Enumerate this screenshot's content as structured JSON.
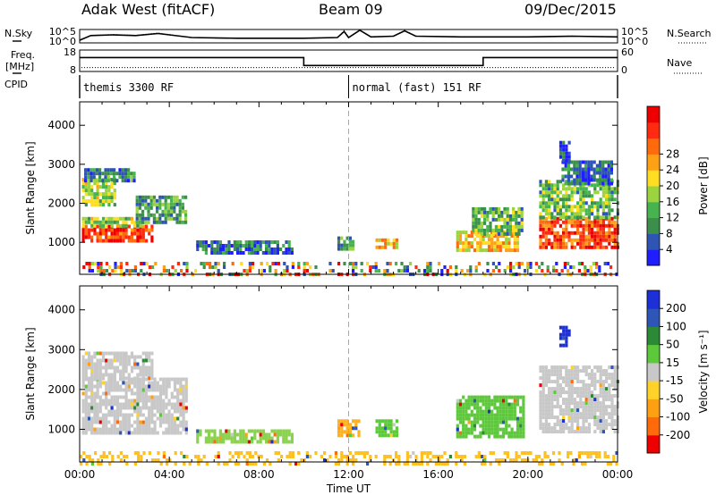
{
  "header": {
    "station": "Adak West (fitACF)",
    "beam": "Beam 09",
    "date": "09/Dec/2015"
  },
  "panel_labels": {
    "nsky": "N.Sky",
    "nsearch": "N.Search",
    "freq_top": "Freq.",
    "freq_unit": "[MHz]",
    "nave": "Nave",
    "cpid": "CPID"
  },
  "chart_data": [
    {
      "type": "line",
      "name": "noise",
      "left_axis_ticks": [
        "10^5",
        "10^0"
      ],
      "right_axis_ticks": [
        "10^5",
        "10^0"
      ],
      "x_hours": [
        0,
        0.5,
        1.5,
        2.5,
        3.5,
        5,
        7,
        10,
        11.5,
        11.8,
        12,
        12.5,
        13,
        14,
        14.5,
        15,
        17,
        20,
        22,
        24
      ],
      "values": [
        0.2,
        0.55,
        0.6,
        0.55,
        0.7,
        0.4,
        0.35,
        0.35,
        0.4,
        0.85,
        0.4,
        0.95,
        0.45,
        0.5,
        0.9,
        0.5,
        0.45,
        0.45,
        0.5,
        0.45
      ]
    },
    {
      "type": "line",
      "name": "frequency-nave",
      "left_axis_ticks": [
        "18",
        "8"
      ],
      "right_axis_ticks": [
        "60",
        "0"
      ],
      "segments_hours": [
        [
          0,
          10,
          14.5
        ],
        [
          10,
          18,
          10.8
        ],
        [
          18,
          24,
          14.5
        ]
      ],
      "nave_level": 9.8
    },
    {
      "type": "table",
      "name": "cpid",
      "entries": [
        {
          "start_hour": 0,
          "label": "themis 3300 RF"
        },
        {
          "start_hour": 12,
          "label": "normal (fast) 151 RF"
        }
      ]
    },
    {
      "type": "heatmap",
      "name": "power",
      "ylabel": "Slant Range [km]",
      "ylim": [
        180,
        4600
      ],
      "y_ticks": [
        1000,
        2000,
        3000,
        4000
      ],
      "colorbar_label": "Power [dB]",
      "colorbar_ticks": [
        4,
        8,
        12,
        16,
        20,
        24,
        28
      ],
      "colorbar_colors": [
        "#1e1eff",
        "#2f55b4",
        "#3c8f4a",
        "#47b34f",
        "#9bd43f",
        "#ffdd22",
        "#ffa114",
        "#ff6a0d",
        "#ff2a10",
        "#ee0000"
      ],
      "patches": [
        {
          "t": [
            0.1,
            3.2
          ],
          "r": [
            1000,
            1450
          ],
          "level": 0.85
        },
        {
          "t": [
            0.1,
            2.8
          ],
          "r": [
            1450,
            1650
          ],
          "level": 0.45
        },
        {
          "t": [
            2.5,
            4.8
          ],
          "r": [
            1500,
            2200
          ],
          "level": 0.3
        },
        {
          "t": [
            0.1,
            1.6
          ],
          "r": [
            2000,
            2650
          ],
          "level": 0.45
        },
        {
          "t": [
            0.2,
            2.5
          ],
          "r": [
            2600,
            2900
          ],
          "level": 0.25
        },
        {
          "t": [
            5.2,
            9.5
          ],
          "r": [
            700,
            1050
          ],
          "level": 0.2
        },
        {
          "t": [
            11.5,
            12.2
          ],
          "r": [
            850,
            1150
          ],
          "level": 0.3
        },
        {
          "t": [
            13.2,
            14.2
          ],
          "r": [
            850,
            1100
          ],
          "level": 0.65
        },
        {
          "t": [
            16.8,
            19.5
          ],
          "r": [
            800,
            1300
          ],
          "level": 0.6
        },
        {
          "t": [
            17.5,
            19.8
          ],
          "r": [
            1200,
            1900
          ],
          "level": 0.35
        },
        {
          "t": [
            20.5,
            24
          ],
          "r": [
            900,
            1650
          ],
          "level": 0.8
        },
        {
          "t": [
            20.5,
            24
          ],
          "r": [
            1600,
            2600
          ],
          "level": 0.35
        },
        {
          "t": [
            21.5,
            23.7
          ],
          "r": [
            2500,
            3100
          ],
          "level": 0.15
        },
        {
          "t": [
            21.4,
            21.9
          ],
          "r": [
            3100,
            3600
          ],
          "level": 0.1
        },
        {
          "t": [
            0,
            24
          ],
          "r": [
            180,
            500
          ],
          "level": 0.4
        }
      ]
    },
    {
      "type": "heatmap",
      "name": "velocity",
      "ylabel": "Slant Range [km]",
      "xlabel": "Time UT",
      "ylim": [
        180,
        4600
      ],
      "y_ticks": [
        1000,
        2000,
        3000,
        4000
      ],
      "x_ticks": [
        "00:00",
        "04:00",
        "08:00",
        "12:00",
        "16:00",
        "20:00",
        "00:00"
      ],
      "colorbar_label": "Velocity [m s⁻¹]",
      "colorbar_ticks": [
        "200",
        "100",
        "50",
        "15",
        "-15",
        "-50",
        "-100",
        "-200"
      ],
      "colorbar_colors": [
        "#1d2fd6",
        "#2d56b8",
        "#2c8a36",
        "#5cc93a",
        "#c8c8c8",
        "#ffd22a",
        "#ffa012",
        "#ff6a0a",
        "#ee0000"
      ],
      "patches": [
        {
          "t": [
            0.1,
            4.8
          ],
          "r": [
            900,
            2300
          ],
          "color": "#c8c8c8"
        },
        {
          "t": [
            0.1,
            3.2
          ],
          "r": [
            2300,
            2950
          ],
          "color": "#c8c8c8"
        },
        {
          "t": [
            5.2,
            9.5
          ],
          "r": [
            700,
            1000
          ],
          "color": "#8bd34e"
        },
        {
          "t": [
            11.5,
            12.4
          ],
          "r": [
            850,
            1250
          ],
          "color": "#ffb020"
        },
        {
          "t": [
            13.2,
            14.2
          ],
          "r": [
            850,
            1250
          ],
          "color": "#5cc93a"
        },
        {
          "t": [
            16.8,
            19.8
          ],
          "r": [
            800,
            1850
          ],
          "color": "#5cc93a"
        },
        {
          "t": [
            20.5,
            24
          ],
          "r": [
            900,
            2600
          ],
          "color": "#c8c8c8"
        },
        {
          "t": [
            21.4,
            21.9
          ],
          "r": [
            3100,
            3600
          ],
          "color": "#1d2fd6"
        },
        {
          "t": [
            0,
            24
          ],
          "r": [
            180,
            450
          ],
          "color": "#ffc020"
        }
      ]
    }
  ]
}
